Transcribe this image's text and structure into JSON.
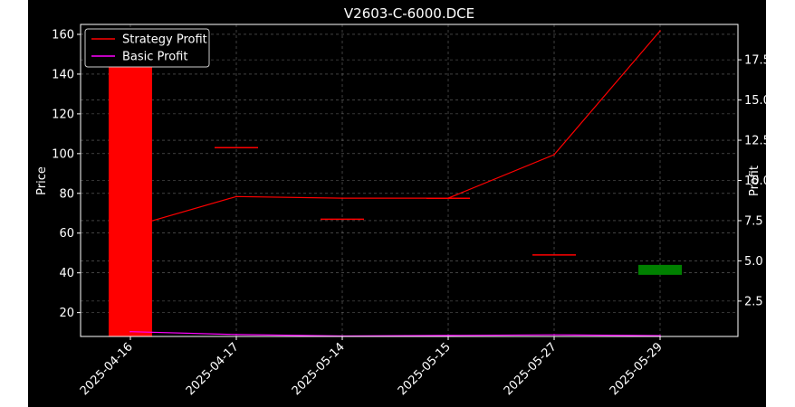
{
  "chart_data": {
    "type": "line",
    "title": "V2603-C-6000.DCE",
    "x_categories": [
      "2025-04-16",
      "2025-04-17",
      "2025-05-14",
      "2025-05-15",
      "2025-05-27",
      "2025-05-29"
    ],
    "y_left": {
      "label": "Price",
      "lim": [
        8,
        165
      ],
      "ticks": [
        20,
        40,
        60,
        80,
        100,
        120,
        140,
        160
      ]
    },
    "y_right": {
      "label": "Profit",
      "lim": [
        0.3,
        19.7
      ],
      "ticks": [
        2.5,
        5.0,
        7.5,
        10.0,
        12.5,
        15.0,
        17.5
      ]
    },
    "candles": [
      {
        "x": "2025-04-16",
        "open": 162,
        "close": 8,
        "color": "#ff0000"
      },
      {
        "x": "2025-04-17",
        "open": 103,
        "close": 103,
        "color": "#ff0000"
      },
      {
        "x": "2025-05-14",
        "open": 67,
        "close": 67,
        "color": "#ff0000"
      },
      {
        "x": "2025-05-15",
        "open": 77.5,
        "close": 77.5,
        "color": "#ff0000"
      },
      {
        "x": "2025-05-27",
        "open": 49,
        "close": 49,
        "color": "#ff0000"
      },
      {
        "x": "2025-05-29",
        "open": 44,
        "close": 39,
        "color": "#008000"
      }
    ],
    "series": [
      {
        "name": "Strategy Profit",
        "axis": "right",
        "color": "#ff0000",
        "values": [
          7.1,
          9.0,
          8.9,
          8.9,
          11.6,
          19.3
        ]
      },
      {
        "name": "Basic Profit",
        "axis": "right",
        "color": "#ff00ff",
        "values": [
          0.6,
          0.42,
          0.33,
          0.36,
          0.4,
          0.35
        ]
      }
    ],
    "legend": "top-left",
    "grid": true
  }
}
